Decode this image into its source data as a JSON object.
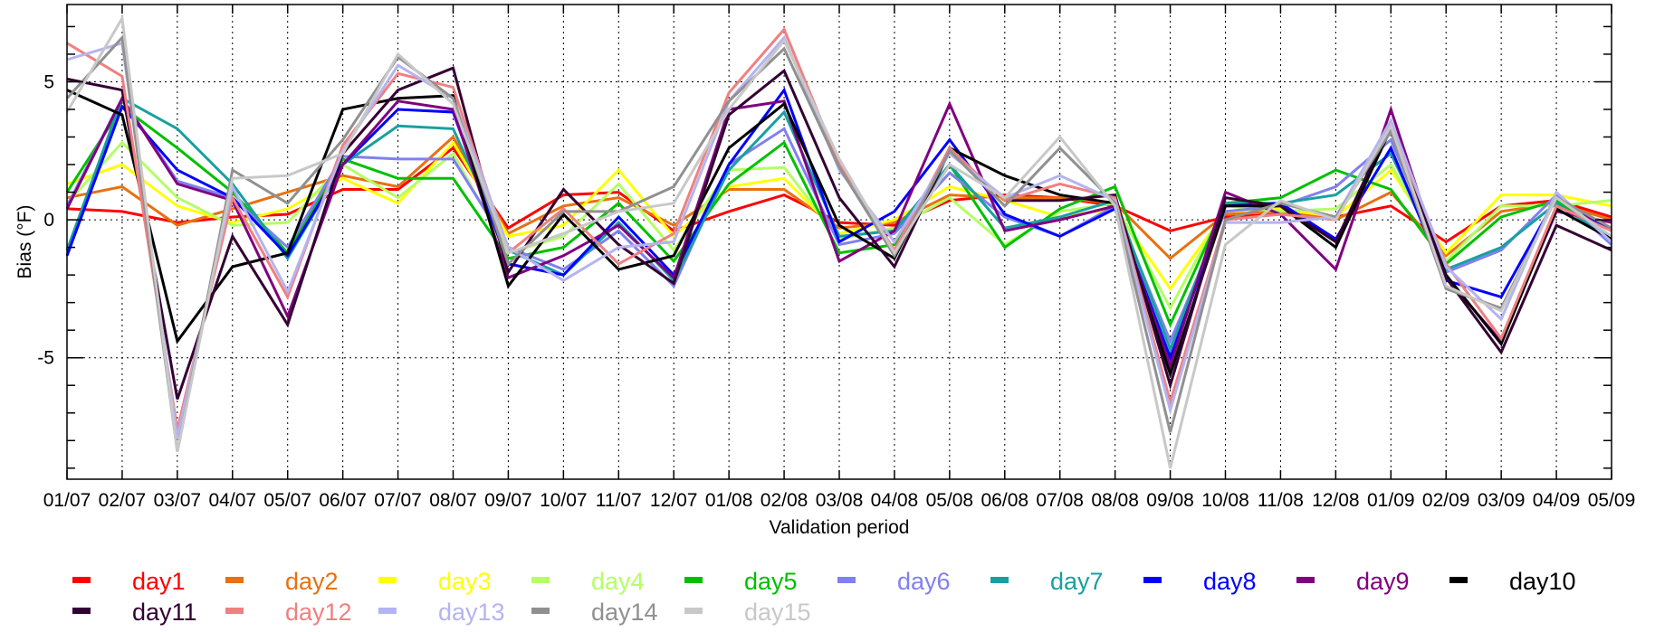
{
  "chart_data": {
    "type": "line",
    "title": "",
    "xlabel": "Validation period",
    "ylabel": "Bias (°F)",
    "categories": [
      "01/07",
      "02/07",
      "03/07",
      "04/07",
      "05/07",
      "06/07",
      "07/07",
      "08/07",
      "09/07",
      "10/07",
      "11/07",
      "12/07",
      "01/08",
      "02/08",
      "03/08",
      "04/08",
      "05/08",
      "06/08",
      "07/08",
      "08/08",
      "09/08",
      "10/08",
      "11/08",
      "12/08",
      "01/09",
      "02/09",
      "03/09",
      "04/09",
      "05/09"
    ],
    "yticks": [
      -5,
      0,
      5
    ],
    "ylim": [
      -9.4,
      7.8
    ],
    "grid": true,
    "legend_position": "bottom",
    "series": [
      {
        "name": "day1",
        "color": "#ff0000",
        "values": [
          0.4,
          0.3,
          -0.1,
          0.1,
          0.2,
          1.1,
          1.1,
          2.6,
          -0.3,
          0.9,
          1.0,
          -0.4,
          0.3,
          0.9,
          -0.1,
          -0.2,
          0.7,
          0.9,
          0.8,
          0.5,
          -0.4,
          0.1,
          0.2,
          0.1,
          0.5,
          -0.8,
          0.5,
          0.7,
          0.1
        ]
      },
      {
        "name": "day2",
        "color": "#e87010",
        "values": [
          0.8,
          1.2,
          -0.2,
          0.4,
          1.0,
          1.6,
          1.2,
          3.0,
          -0.5,
          0.5,
          0.8,
          -0.2,
          1.1,
          1.1,
          -0.3,
          -0.1,
          0.9,
          0.8,
          0.8,
          0.6,
          -1.4,
          0.2,
          0.3,
          0.0,
          1.0,
          -1.3,
          0.3,
          0.6,
          0.0
        ]
      },
      {
        "name": "day3",
        "color": "#ffff00",
        "values": [
          1.3,
          2.0,
          0.5,
          -0.1,
          0.4,
          1.5,
          0.6,
          2.8,
          -0.6,
          -0.2,
          1.8,
          -0.6,
          1.2,
          1.5,
          -0.5,
          0.0,
          1.2,
          0.7,
          0.1,
          0.4,
          -2.5,
          0.3,
          0.4,
          0.1,
          1.8,
          -1.2,
          0.9,
          0.9,
          0.5
        ]
      },
      {
        "name": "day4",
        "color": "#b4ff64",
        "values": [
          0.6,
          2.8,
          0.8,
          -0.2,
          -0.1,
          2.0,
          0.8,
          2.4,
          -1.2,
          -0.6,
          1.3,
          -1.1,
          1.8,
          1.9,
          -0.7,
          -0.3,
          0.8,
          -0.9,
          0.3,
          0.6,
          -3.2,
          0.5,
          0.3,
          0.4,
          2.0,
          -1.5,
          0.5,
          0.5,
          0.7
        ]
      },
      {
        "name": "day5",
        "color": "#00c000",
        "values": [
          1.0,
          4.1,
          2.6,
          1.0,
          -1.2,
          2.2,
          1.5,
          1.5,
          -1.4,
          -1.0,
          0.6,
          -1.5,
          1.3,
          2.8,
          -1.2,
          -0.9,
          2.0,
          -1.0,
          0.4,
          1.2,
          -3.8,
          0.6,
          0.8,
          1.8,
          1.1,
          -1.6,
          0.1,
          0.7,
          -0.6
        ]
      },
      {
        "name": "day6",
        "color": "#8080f0",
        "values": [
          0.5,
          4.4,
          1.4,
          0.8,
          -1.0,
          2.3,
          2.2,
          2.2,
          -1.0,
          -1.8,
          -0.4,
          -2.4,
          2.0,
          3.3,
          -0.9,
          -0.5,
          1.7,
          0.1,
          -0.6,
          0.5,
          -4.4,
          0.3,
          0.5,
          1.2,
          2.9,
          -1.9,
          -1.1,
          0.9,
          -0.9
        ]
      },
      {
        "name": "day7",
        "color": "#18a0a0",
        "values": [
          -1.1,
          4.4,
          3.3,
          1.3,
          -1.4,
          2.0,
          3.4,
          3.3,
          -1.1,
          -2.0,
          -0.1,
          -2.2,
          1.8,
          3.9,
          -0.6,
          -0.4,
          2.0,
          -0.3,
          0.1,
          0.7,
          -4.7,
          0.6,
          0.6,
          0.9,
          2.4,
          -1.8,
          -1.0,
          0.6,
          -0.7
        ]
      },
      {
        "name": "day8",
        "color": "#0000ff",
        "values": [
          -1.3,
          4.1,
          1.8,
          0.8,
          -1.3,
          2.0,
          4.0,
          3.9,
          -1.6,
          -2.0,
          0.1,
          -2.0,
          2.0,
          4.7,
          -0.8,
          0.3,
          2.9,
          0.2,
          -0.6,
          0.4,
          -5.0,
          0.5,
          0.6,
          -0.7,
          2.6,
          -2.2,
          -2.8,
          0.8,
          -0.4
        ]
      },
      {
        "name": "day9",
        "color": "#800080",
        "values": [
          0.4,
          4.4,
          1.3,
          0.7,
          -3.5,
          2.0,
          4.3,
          4.0,
          -2.1,
          -1.3,
          -0.2,
          -2.1,
          4.0,
          4.3,
          -1.5,
          -0.4,
          4.2,
          -0.4,
          0.0,
          0.5,
          -5.3,
          1.0,
          0.2,
          -1.8,
          4.0,
          -2.1,
          -4.4,
          0.3,
          -0.1
        ]
      },
      {
        "name": "day10",
        "color": "#000000",
        "values": [
          4.7,
          3.8,
          -4.4,
          -1.7,
          -1.2,
          4.0,
          4.4,
          4.5,
          -2.4,
          0.2,
          -1.8,
          -1.3,
          2.6,
          4.2,
          -0.2,
          -1.4,
          2.6,
          1.6,
          0.9,
          0.6,
          -5.6,
          0.5,
          0.5,
          -1.0,
          3.3,
          -2.0,
          -4.5,
          0.4,
          -0.7
        ]
      },
      {
        "name": "day11",
        "color": "#330033",
        "values": [
          5.1,
          4.7,
          -6.5,
          -0.6,
          -3.8,
          2.4,
          4.7,
          5.5,
          -1.9,
          1.1,
          -0.9,
          -2.3,
          3.8,
          5.4,
          0.8,
          -1.7,
          2.5,
          0.7,
          0.7,
          0.9,
          -6.0,
          0.8,
          0.5,
          -0.8,
          3.5,
          -2.1,
          -4.8,
          -0.2,
          -1.1
        ]
      },
      {
        "name": "day12",
        "color": "#f08080",
        "values": [
          6.4,
          5.2,
          -7.6,
          0.8,
          -2.8,
          2.7,
          5.3,
          4.8,
          -1.2,
          0.4,
          -1.6,
          -0.5,
          4.6,
          6.9,
          2.0,
          -1.1,
          2.6,
          0.7,
          1.3,
          0.8,
          -6.6,
          0.0,
          0.2,
          0.0,
          3.4,
          -1.6,
          -4.3,
          0.5,
          -0.4
        ]
      },
      {
        "name": "day13",
        "color": "#b4b4f0",
        "values": [
          5.8,
          6.4,
          -7.9,
          1.2,
          -2.6,
          2.5,
          5.6,
          4.4,
          -1.0,
          -2.2,
          -1.0,
          -0.8,
          4.3,
          6.6,
          1.8,
          -0.8,
          2.4,
          0.8,
          1.6,
          0.7,
          -6.9,
          -0.1,
          -0.1,
          0.1,
          3.6,
          -1.7,
          -3.6,
          1.0,
          -0.8
        ]
      },
      {
        "name": "day14",
        "color": "#909090",
        "values": [
          4.4,
          6.6,
          -8.4,
          1.8,
          0.6,
          2.9,
          5.9,
          4.4,
          -1.6,
          0.3,
          0.3,
          1.2,
          4.3,
          6.2,
          1.9,
          -1.3,
          2.5,
          0.5,
          2.6,
          0.6,
          -7.7,
          0.0,
          0.6,
          0.1,
          3.2,
          -2.5,
          -3.2,
          0.8,
          -0.3
        ]
      },
      {
        "name": "day15",
        "color": "#c8c8c8",
        "values": [
          3.9,
          7.3,
          -8.4,
          1.5,
          1.6,
          2.4,
          6.0,
          4.2,
          -1.2,
          -0.5,
          0.3,
          0.6,
          4.0,
          6.5,
          2.2,
          -1.2,
          2.0,
          0.8,
          3.0,
          0.5,
          -9.0,
          -0.9,
          0.7,
          0.0,
          3.4,
          -2.4,
          -3.3,
          0.8,
          -0.6
        ]
      }
    ]
  }
}
